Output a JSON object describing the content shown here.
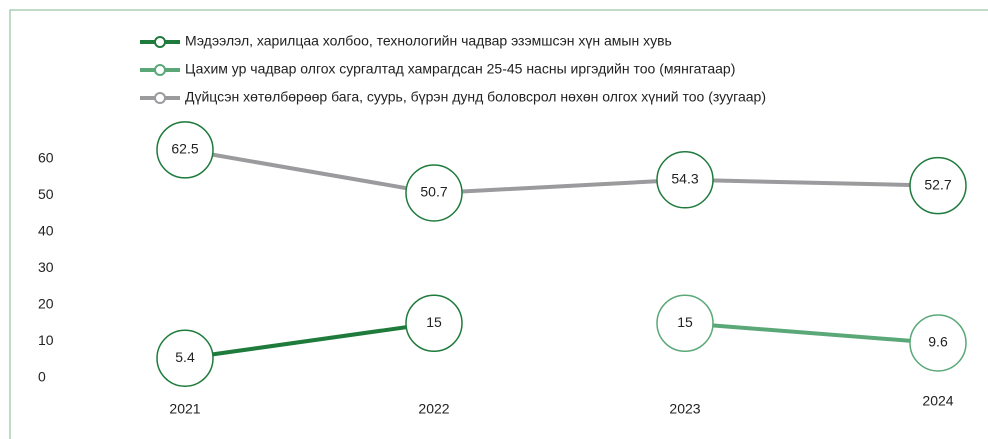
{
  "chart_data": {
    "type": "line",
    "categories": [
      "2021",
      "2022",
      "2023",
      "2024"
    ],
    "series": [
      {
        "name": "Мэдээлэл, харилцаа холбоо, технологийн чадвар эзэмшсэн хүн амын хувь",
        "color": "#1e7b3c",
        "values": [
          5.4,
          15,
          null,
          null
        ]
      },
      {
        "name": "Цахим ур чадвар олгох сургалтад хамрагдсан 25-45 насны иргэдийн тоо (мянгатаар)",
        "color": "#5aa878",
        "values": [
          null,
          null,
          15,
          9.6
        ]
      },
      {
        "name": "Дүйцсэн хөтөлбөрөөр бага, суурь, бүрэн дунд боловсрол нөхөн олгох хүний тоо (зуугаар)",
        "color": "#9b9b9e",
        "values": [
          62.5,
          50.7,
          54.3,
          52.7
        ]
      }
    ],
    "ylim": [
      0,
      60
    ],
    "yticks": [
      0,
      10,
      20,
      30,
      40,
      50,
      60
    ],
    "grid": false,
    "legend": "top-left"
  }
}
